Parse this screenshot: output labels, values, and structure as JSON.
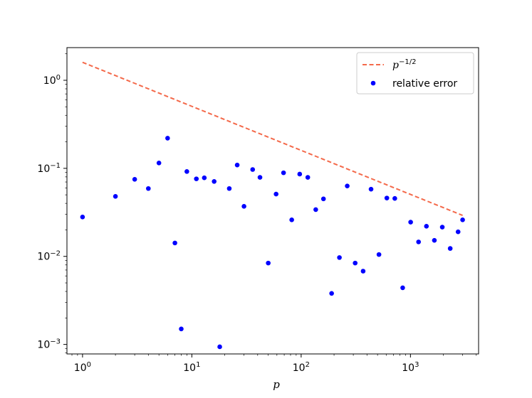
{
  "chart_data": {
    "type": "scatter",
    "xlabel": "p",
    "ylabel": "",
    "xscale": "log",
    "yscale": "log",
    "xlim": [
      0.72,
      4200
    ],
    "ylim": [
      0.00078,
      2.35
    ],
    "grid": false,
    "legend_position": "top-right",
    "x_ticks": [
      {
        "value": 1,
        "base": "10",
        "exp": "0"
      },
      {
        "value": 10,
        "base": "10",
        "exp": "1"
      },
      {
        "value": 100,
        "base": "10",
        "exp": "2"
      },
      {
        "value": 1000,
        "base": "10",
        "exp": "3"
      }
    ],
    "y_ticks": [
      {
        "value": 0.001,
        "base": "10",
        "exp": "−3"
      },
      {
        "value": 0.01,
        "base": "10",
        "exp": "−2"
      },
      {
        "value": 0.1,
        "base": "10",
        "exp": "−1"
      },
      {
        "value": 1,
        "base": "10",
        "exp": "0"
      }
    ],
    "series": [
      {
        "name": "p^{-1/2}",
        "legend_base": "p",
        "legend_exp": "−1/2",
        "type": "line",
        "style": "dashed",
        "color": "#f4694a",
        "x": [
          1,
          3000
        ],
        "y": [
          1.6,
          0.0292
        ]
      },
      {
        "name": "relative error",
        "type": "scatter",
        "color": "#0000ff",
        "x": [
          1,
          2,
          3,
          4,
          5,
          6,
          7,
          8,
          9,
          11,
          13,
          16,
          18,
          22,
          26,
          30,
          36,
          42,
          50,
          59,
          69,
          82,
          97,
          115,
          136,
          160,
          190,
          224,
          264,
          312,
          369,
          436,
          515,
          608,
          719,
          849,
          1004,
          1186,
          1400,
          1655,
          1955,
          2310,
          2728,
          3000
        ],
        "y": [
          0.028,
          0.048,
          0.075,
          0.059,
          0.115,
          0.22,
          0.0142,
          0.0015,
          0.092,
          0.076,
          0.078,
          0.071,
          0.00094,
          0.059,
          0.109,
          0.037,
          0.097,
          0.079,
          0.0084,
          0.051,
          0.089,
          0.026,
          0.086,
          0.079,
          0.034,
          0.045,
          0.0038,
          0.0097,
          0.063,
          0.0084,
          0.0068,
          0.058,
          0.0105,
          0.046,
          0.0455,
          0.0044,
          0.0245,
          0.0146,
          0.022,
          0.0152,
          0.0215,
          0.0123,
          0.019,
          0.026
        ]
      }
    ]
  }
}
